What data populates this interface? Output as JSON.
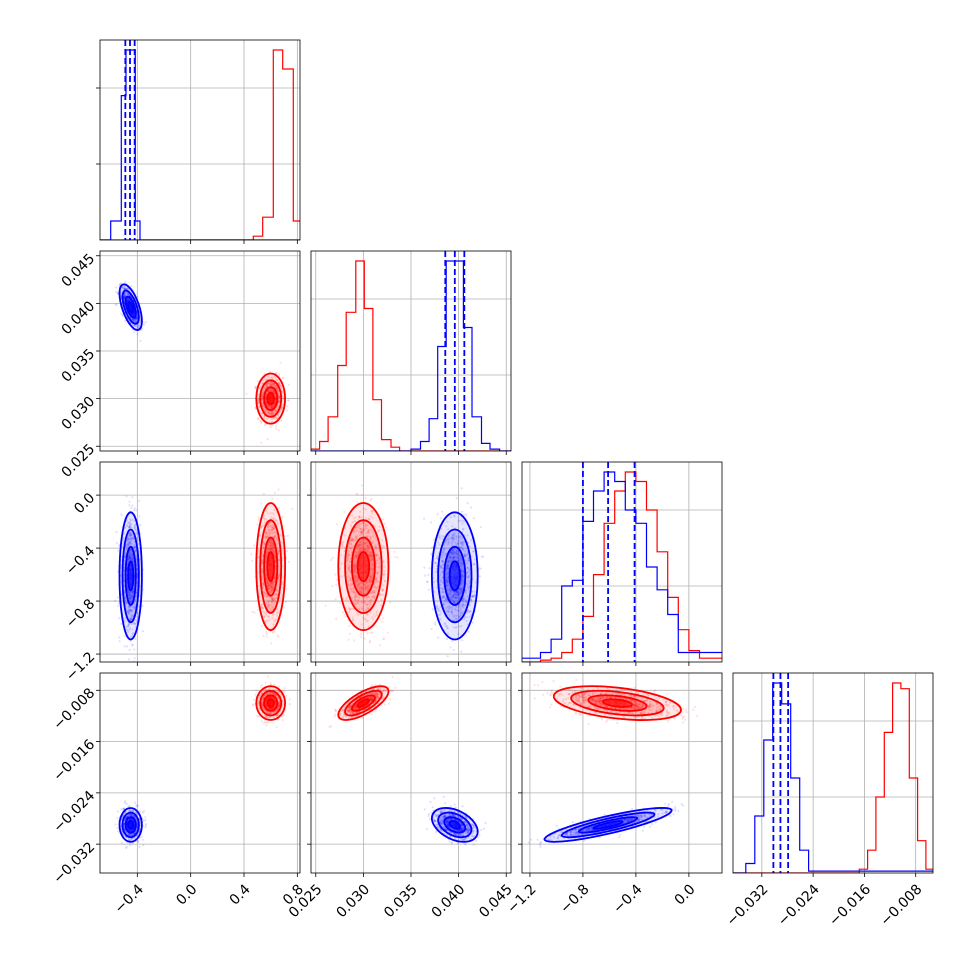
{
  "colors": {
    "series_a": "#ff0000",
    "series_b": "#0000ff",
    "grid": "#b0b0b0"
  },
  "chart_data": {
    "type": "corner",
    "grid": true,
    "parameters": [
      {
        "range": [
          -0.68,
          0.82
        ],
        "ticks": [
          -0.4,
          0.0,
          0.4,
          0.8
        ],
        "tick_labels": [
          "−0.4",
          "0.0",
          "0.4",
          "0.8"
        ]
      },
      {
        "range": [
          0.0245,
          0.0455
        ],
        "ticks": [
          0.025,
          0.03,
          0.035,
          0.04,
          0.045
        ],
        "tick_labels": [
          "0.025",
          "0.030",
          "0.035",
          "0.040",
          "0.045"
        ]
      },
      {
        "range": [
          -1.26,
          0.25
        ],
        "ticks": [
          -1.2,
          -0.8,
          -0.4,
          0.0
        ],
        "tick_labels": [
          "−1.2",
          "−0.8",
          "−0.4",
          "0.0"
        ]
      },
      {
        "range": [
          -0.0365,
          -0.0053
        ],
        "ticks": [
          -0.032,
          -0.024,
          -0.016,
          -0.008
        ],
        "tick_labels": [
          "−0.032",
          "−0.024",
          "−0.016",
          "−0.008"
        ]
      }
    ],
    "series": [
      {
        "color": "#ff0000",
        "mean": [
          0.6,
          0.03,
          -0.54,
          -0.01
        ],
        "std": [
          0.045,
          0.0011,
          0.2,
          0.0011
        ],
        "corr": [
          [
            0,
            1,
            0.0
          ],
          [
            0,
            2,
            0.0
          ],
          [
            0,
            3,
            0.0
          ],
          [
            1,
            2,
            0.0
          ],
          [
            1,
            3,
            0.7
          ],
          [
            2,
            3,
            -0.4
          ]
        ],
        "quantiles": null,
        "histograms": [
          {
            "bins": [
              -0.68,
              0.02,
              0.09,
              0.17,
              0.24,
              0.32,
              0.39,
              0.47,
              0.54,
              0.62,
              0.69,
              0.77,
              0.82
            ],
            "counts": [
              0,
              0,
              0,
              0,
              0,
              0,
              0,
              0.02,
              0.12,
              1.0,
              0.9,
              0.1
            ]
          },
          {
            "bins": [
              0.0245,
              0.0254,
              0.0263,
              0.0273,
              0.0282,
              0.0292,
              0.0301,
              0.031,
              0.0319,
              0.0329,
              0.0338,
              0.0347,
              0.0357,
              0.0455
            ],
            "counts": [
              0.01,
              0.05,
              0.18,
              0.45,
              0.73,
              1.0,
              0.75,
              0.27,
              0.06,
              0.02,
              0.0,
              0.0,
              0.0
            ]
          },
          {
            "bins": [
              -1.26,
              -1.12,
              -1.04,
              -0.96,
              -0.88,
              -0.8,
              -0.72,
              -0.64,
              -0.56,
              -0.48,
              -0.4,
              -0.32,
              -0.24,
              -0.16,
              -0.08,
              0.0,
              0.08,
              0.25
            ],
            "counts": [
              0,
              0.01,
              0.02,
              0.05,
              0.12,
              0.24,
              0.46,
              0.73,
              0.9,
              1.0,
              0.95,
              0.8,
              0.58,
              0.34,
              0.17,
              0.06,
              0.02
            ]
          },
          {
            "bins": [
              -0.0365,
              -0.0168,
              -0.0155,
              -0.0142,
              -0.0129,
              -0.0116,
              -0.0103,
              -0.009,
              -0.0077,
              -0.0064,
              -0.0053
            ],
            "counts": [
              0,
              0.02,
              0.12,
              0.4,
              0.74,
              1.0,
              0.97,
              0.5,
              0.17,
              0.02
            ]
          }
        ]
      },
      {
        "color": "#0000ff",
        "mean": [
          -0.45,
          0.0396,
          -0.61,
          -0.029
        ],
        "std": [
          0.035,
          0.001,
          0.2,
          0.0011
        ],
        "corr": [
          [
            0,
            1,
            -0.6
          ],
          [
            0,
            2,
            0.0
          ],
          [
            0,
            3,
            0.0
          ],
          [
            1,
            2,
            0.0
          ],
          [
            1,
            3,
            -0.4
          ],
          [
            2,
            3,
            0.85
          ]
        ],
        "quantiles": [
          [
            -0.49,
            -0.455,
            -0.42
          ],
          [
            0.0386,
            0.0396,
            0.0406
          ],
          [
            -0.8,
            -0.61,
            -0.41
          ],
          [
            -0.0302,
            -0.0291,
            -0.0279
          ]
        ],
        "histograms": [
          {
            "bins": [
              -0.68,
              -0.6,
              -0.52,
              -0.485,
              -0.45,
              -0.415,
              -0.38,
              0.82
            ],
            "counts": [
              0,
              0.1,
              0.76,
              1.0,
              1.0,
              0.1,
              0
            ]
          },
          {
            "bins": [
              0.0245,
              0.035,
              0.036,
              0.0369,
              0.0378,
              0.0387,
              0.0396,
              0.0405,
              0.0414,
              0.0424,
              0.0433,
              0.0443,
              0.0455
            ],
            "counts": [
              0,
              0.01,
              0.05,
              0.17,
              0.55,
              1.0,
              1.0,
              0.65,
              0.18,
              0.04,
              0.01,
              0
            ]
          },
          {
            "bins": [
              -1.26,
              -1.12,
              -1.04,
              -0.96,
              -0.88,
              -0.8,
              -0.72,
              -0.64,
              -0.56,
              -0.48,
              -0.4,
              -0.32,
              -0.24,
              -0.16,
              -0.08,
              0.25
            ],
            "counts": [
              0.02,
              0.05,
              0.12,
              0.4,
              0.43,
              0.74,
              0.9,
              1.0,
              0.95,
              0.8,
              0.73,
              0.5,
              0.38,
              0.25,
              0.05
            ]
          },
          {
            "bins": [
              -0.0365,
              -0.0345,
              -0.0331,
              -0.0317,
              -0.0303,
              -0.0289,
              -0.0275,
              -0.0261,
              -0.0247,
              -0.0053
            ],
            "counts": [
              0,
              0.05,
              0.3,
              0.7,
              1.0,
              0.89,
              0.5,
              0.12,
              0.01
            ]
          }
        ]
      }
    ]
  }
}
